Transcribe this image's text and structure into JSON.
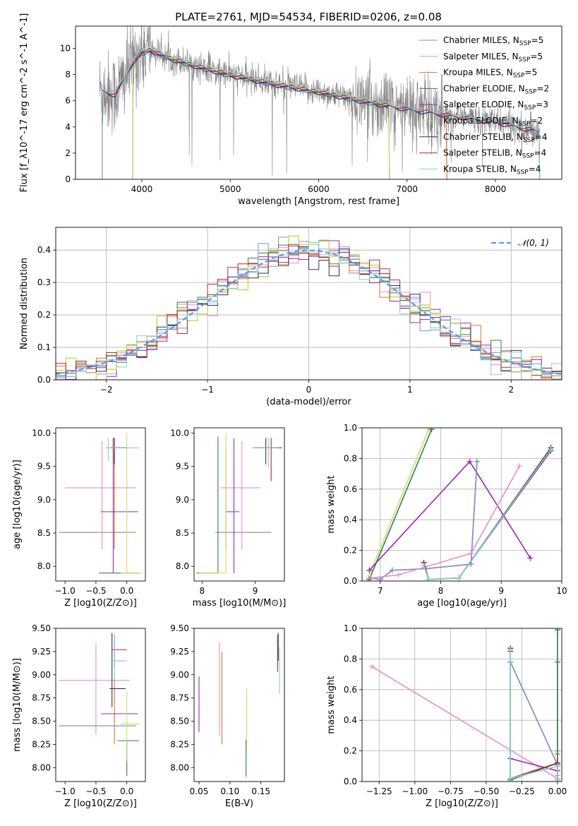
{
  "figure": {
    "title": "PLATE=2761, MJD=54534, FIBERID=0206, z=0.08"
  },
  "colors": {
    "Chabrier MILES": "#7b93d6",
    "Salpeter MILES": "#e88fc6",
    "Kroupa MILES": "#d7792b",
    "Chabrier ELODIE": "#2f8050",
    "Salpeter ELODIE": "#9c27b0",
    "Kroupa ELODIE": "#c8e06a",
    "Chabrier STELIB": "#2d2d6f",
    "Salpeter STELIB": "#b22a2a",
    "Kroupa STELIB": "#7fd2d8",
    "data": "#808080",
    "normal": "#6495ed"
  },
  "chart_data": [
    {
      "id": "spectrum",
      "type": "line",
      "title": "PLATE=2761, MJD=54534, FIBERID=0206, z=0.08",
      "xlabel": "wavelength [Angstrom, rest frame]",
      "ylabel": "Flux [f_λ10^-17 erg cm^-2 s^-1 A^-1]",
      "xlim": [
        3250,
        8750
      ],
      "ylim": [
        0,
        11.7
      ],
      "xticks": [
        4000,
        5000,
        6000,
        7000,
        8000
      ],
      "yticks": [
        0,
        2,
        4,
        6,
        8,
        10
      ],
      "legend_loc": "upper right",
      "continuum_anchors": {
        "x": [
          3550,
          3700,
          3900,
          4000,
          4100,
          4300,
          4600,
          5000,
          5500,
          6000,
          6500,
          7000,
          7500,
          8000,
          8500
        ],
        "y": [
          6.8,
          6.5,
          9.0,
          9.7,
          9.9,
          9.3,
          8.7,
          8.0,
          7.3,
          6.7,
          6.0,
          5.4,
          4.9,
          4.4,
          3.7
        ]
      },
      "series": [
        {
          "name": "Chabrier MILES",
          "nssp": 5,
          "xrange": [
            3550,
            7450
          ]
        },
        {
          "name": "Salpeter MILES",
          "nssp": 5,
          "xrange": [
            3550,
            7450
          ]
        },
        {
          "name": "Kroupa MILES",
          "nssp": 5,
          "xrange": [
            3550,
            7450
          ]
        },
        {
          "name": "Chabrier ELODIE",
          "nssp": 2,
          "xrange": [
            3900,
            6800
          ]
        },
        {
          "name": "Salpeter ELODIE",
          "nssp": 3,
          "xrange": [
            3900,
            6800
          ]
        },
        {
          "name": "Kroupa ELODIE",
          "nssp": 2,
          "xrange": [
            3900,
            6800
          ]
        },
        {
          "name": "Chabrier STELIB",
          "nssp": 4,
          "xrange": [
            3550,
            8500
          ]
        },
        {
          "name": "Salpeter STELIB",
          "nssp": 4,
          "xrange": [
            3550,
            8500
          ]
        },
        {
          "name": "Kroupa STELIB",
          "nssp": 4,
          "xrange": [
            3550,
            8500
          ]
        }
      ]
    },
    {
      "id": "residuals",
      "type": "line",
      "xlabel": "(data-model)/error",
      "ylabel": "Normed distribution",
      "xlim": [
        -2.5,
        2.5
      ],
      "ylim": [
        0,
        0.47
      ],
      "xticks": [
        -2,
        -1,
        0,
        1,
        2
      ],
      "yticks": [
        0.0,
        0.1,
        0.2,
        0.3,
        0.4
      ],
      "bin_width": 0.1,
      "legend": "𝒩(0, 1)",
      "grid": true
    },
    {
      "id": "age_vs_Z",
      "type": "scatter",
      "xlabel": "Z [log10(Z/Z⊙)]",
      "ylabel": "age  [log10(age/yr)]",
      "xlim": [
        -1.15,
        0.3
      ],
      "ylim": [
        7.78,
        10.08
      ],
      "xticks": [
        -1.0,
        -0.5,
        0.0
      ],
      "yticks": [
        8.0,
        8.5,
        9.0,
        9.5,
        10.0
      ],
      "points": [
        {
          "series": "Salpeter MILES",
          "x": -0.4,
          "xerr": [
            0.6,
            0.55
          ],
          "y": 9.18,
          "yerr": [
            0.92,
            0.7
          ]
        },
        {
          "series": "Kroupa MILES",
          "x": -0.2,
          "xerr": [
            0.9,
            0.35
          ],
          "y": 8.51,
          "yerr": [
            0.25,
            1.25
          ]
        },
        {
          "series": "Chabrier MILES",
          "x": -0.45,
          "xerr": [
            0.6,
            0.55
          ],
          "y": 8.51,
          "yerr": [
            0.0,
            0.0
          ]
        },
        {
          "series": "Salpeter ELODIE",
          "x": -0.22,
          "xerr": [
            0.2,
            0.4
          ],
          "y": 8.82,
          "yerr": [
            0.92,
            1.1
          ]
        },
        {
          "series": "Chabrier ELODIE",
          "x": -0.1,
          "xerr": [
            0.35,
            0.3
          ],
          "y": 7.9,
          "yerr": [
            0.0,
            0.0
          ]
        },
        {
          "series": "Kroupa ELODIE",
          "x": 0.0,
          "xerr": [
            0.1,
            0.25
          ],
          "y": 7.9,
          "yerr": [
            0.0,
            2.1
          ]
        },
        {
          "series": "Chabrier STELIB",
          "x": -0.2,
          "xerr": [
            0.05,
            0.2
          ],
          "y": 9.78,
          "yerr": [
            0.25,
            0.15
          ]
        },
        {
          "series": "Salpeter STELIB",
          "x": -0.22,
          "xerr": [
            0.05,
            0.2
          ],
          "y": 9.78,
          "yerr": [
            0.2,
            0.15
          ]
        },
        {
          "series": "Kroupa STELIB",
          "x": -0.3,
          "xerr": [
            0.05,
            0.5
          ],
          "y": 9.78,
          "yerr": [
            0.2,
            0.15
          ]
        }
      ]
    },
    {
      "id": "age_vs_mass",
      "type": "scatter",
      "xlabel": "mass [log10(M/M⊙)]",
      "ylabel": "",
      "xlim": [
        7.85,
        9.55
      ],
      "ylim": [
        7.78,
        10.08
      ],
      "xticks": [
        8,
        9
      ],
      "yticks": [
        8.0,
        8.5,
        9.0,
        9.5,
        10.0
      ],
      "points": [
        {
          "series": "Salpeter MILES",
          "x": 8.75,
          "xerr": [
            0.4,
            0.35
          ],
          "y": 9.18,
          "yerr": [
            0.92,
            0.7
          ]
        },
        {
          "series": "Kroupa MILES",
          "x": 8.45,
          "xerr": [
            0.2,
            0.85
          ],
          "y": 8.51,
          "yerr": [
            0.25,
            1.25
          ]
        },
        {
          "series": "Chabrier MILES",
          "x": 8.45,
          "xerr": [
            0.2,
            0.85
          ],
          "y": 8.51,
          "yerr": [
            0.0,
            0.0
          ]
        },
        {
          "series": "Salpeter ELODIE",
          "x": 8.6,
          "xerr": [
            0.15,
            0.1
          ],
          "y": 8.82,
          "yerr": [
            0.92,
            1.1
          ]
        },
        {
          "series": "Chabrier ELODIE",
          "x": 8.3,
          "xerr": [
            0.4,
            0.0
          ],
          "y": 7.9,
          "yerr": [
            0.0,
            2.05
          ]
        },
        {
          "series": "Kroupa ELODIE",
          "x": 8.45,
          "xerr": [
            0.5,
            0.0
          ],
          "y": 7.9,
          "yerr": [
            0.0,
            2.1
          ]
        },
        {
          "series": "Chabrier STELIB",
          "x": 9.2,
          "xerr": [
            0.25,
            0.3
          ],
          "y": 9.78,
          "yerr": [
            0.25,
            0.15
          ]
        },
        {
          "series": "Salpeter STELIB",
          "x": 9.3,
          "xerr": [
            0.25,
            0.2
          ],
          "y": 9.78,
          "yerr": [
            0.5,
            0.15
          ]
        },
        {
          "series": "Kroupa STELIB",
          "x": 9.25,
          "xerr": [
            0.3,
            0.2
          ],
          "y": 9.78,
          "yerr": [
            0.3,
            0.15
          ]
        }
      ]
    },
    {
      "id": "weight_vs_age",
      "type": "line",
      "xlabel": "age  [log10(age/yr)]",
      "ylabel": "mass weight",
      "xlim": [
        6.7,
        10
      ],
      "ylim": [
        0,
        1
      ],
      "xticks": [
        7,
        8,
        9,
        10
      ],
      "yticks": [
        0.0,
        0.2,
        0.4,
        0.6,
        0.8,
        1.0
      ],
      "grid": true,
      "series": [
        {
          "name": "Kroupa ELODIE",
          "x": [
            6.8,
            7.8
          ],
          "y": [
            0.02,
            0.99
          ]
        },
        {
          "name": "Chabrier ELODIE",
          "x": [
            6.82,
            7.85
          ],
          "y": [
            0.01,
            0.99
          ]
        },
        {
          "name": "Salpeter ELODIE",
          "x": [
            6.82,
            8.48,
            9.48
          ],
          "y": [
            0.07,
            0.78,
            0.15
          ]
        },
        {
          "name": "Kroupa MILES",
          "x": [
            6.85,
            7.0,
            7.2,
            7.75,
            8.5,
            8.6
          ],
          "y": [
            0.02,
            0.01,
            0.07,
            0.08,
            0.11,
            0.78
          ]
        },
        {
          "name": "Chabrier MILES",
          "x": [
            6.85,
            7.0,
            7.2,
            7.75,
            8.5,
            8.6
          ],
          "y": [
            0.02,
            0.01,
            0.07,
            0.08,
            0.11,
            0.78
          ]
        },
        {
          "name": "Salpeter MILES",
          "x": [
            6.85,
            7.3,
            8.5,
            9.3
          ],
          "y": [
            0.02,
            0.04,
            0.18,
            0.75
          ]
        },
        {
          "name": "Chabrier STELIB",
          "x": [
            7.72,
            7.8,
            8.3,
            9.82
          ],
          "y": [
            0.12,
            0.01,
            0.02,
            0.87
          ]
        },
        {
          "name": "Salpeter STELIB",
          "x": [
            7.72,
            7.8,
            8.3,
            9.82
          ],
          "y": [
            0.12,
            0.01,
            0.02,
            0.85
          ]
        },
        {
          "name": "Kroupa STELIB",
          "x": [
            7.72,
            7.8,
            8.3,
            9.82
          ],
          "y": [
            0.1,
            0.01,
            0.02,
            0.86
          ]
        }
      ]
    },
    {
      "id": "mass_vs_Z",
      "type": "scatter",
      "xlabel": "Z [log10(Z/Z⊙)]",
      "ylabel": "mass [log10(M/M⊙)]",
      "xlim": [
        -1.15,
        0.3
      ],
      "ylim": [
        7.85,
        9.5
      ],
      "xticks": [
        -1.0,
        -0.5,
        0.0
      ],
      "yticks": [
        8.0,
        8.25,
        8.5,
        8.75,
        9.0,
        9.25,
        9.5
      ],
      "points": [
        {
          "series": "Salpeter MILES",
          "x": -0.5,
          "xerr": [
            0.6,
            0.55
          ],
          "y": 8.94,
          "yerr": [
            0.58,
            0.4
          ]
        },
        {
          "series": "Kroupa MILES",
          "x": -0.2,
          "xerr": [
            0.9,
            0.35
          ],
          "y": 8.45,
          "yerr": [
            0.2,
            0.55
          ]
        },
        {
          "series": "Chabrier MILES",
          "x": -0.45,
          "xerr": [
            0.6,
            0.55
          ],
          "y": 8.45,
          "yerr": [
            0.0,
            0.0
          ]
        },
        {
          "series": "Salpeter ELODIE",
          "x": -0.22,
          "xerr": [
            0.2,
            0.4
          ],
          "y": 8.58,
          "yerr": [
            0.0,
            0.0
          ]
        },
        {
          "series": "Chabrier ELODIE",
          "x": 0.0,
          "xerr": [
            0.15,
            0.2
          ],
          "y": 8.29,
          "yerr": [
            0.38,
            0.0
          ]
        },
        {
          "series": "Kroupa ELODIE",
          "x": 0.0,
          "xerr": [
            0.1,
            0.2
          ],
          "y": 8.47,
          "yerr": [
            0.4,
            0.35
          ]
        },
        {
          "series": "Chabrier STELIB",
          "x": -0.24,
          "xerr": [
            0.04,
            0.22
          ],
          "y": 8.85,
          "yerr": [
            0.2,
            0.6
          ]
        },
        {
          "series": "Salpeter STELIB",
          "x": -0.2,
          "xerr": [
            0.05,
            0.2
          ],
          "y": 9.27,
          "yerr": [
            0.2,
            0.15
          ]
        },
        {
          "series": "Kroupa STELIB",
          "x": -0.2,
          "xerr": [
            0.05,
            0.2
          ],
          "y": 9.15,
          "yerr": [
            0.2,
            0.3
          ]
        }
      ]
    },
    {
      "id": "mass_vs_ebv",
      "type": "scatter",
      "xlabel": "E(B-V)",
      "ylabel": "",
      "xlim": [
        0.042,
        0.188
      ],
      "ylim": [
        7.85,
        9.5
      ],
      "xticks": [
        0.05,
        0.1,
        0.15
      ],
      "yticks": [
        8.0,
        8.25,
        8.5,
        8.75,
        9.0,
        9.25,
        9.5
      ],
      "points": [
        {
          "series": "Salpeter ELODIE",
          "x": 0.05,
          "y": 8.68,
          "yerr": [
            0.3,
            0.3
          ]
        },
        {
          "series": "Salpeter MILES",
          "x": 0.083,
          "y": 8.85,
          "yerr": [
            0.5,
            0.5
          ]
        },
        {
          "series": "Kroupa MILES",
          "x": 0.087,
          "y": 8.75,
          "yerr": [
            0.5,
            0.5
          ]
        },
        {
          "series": "Chabrier ELODIE",
          "x": 0.126,
          "y": 8.1,
          "yerr": [
            0.2,
            0.2
          ]
        },
        {
          "series": "Kroupa ELODIE",
          "x": 0.127,
          "y": 8.5,
          "yerr": [
            0.35,
            0.35
          ]
        },
        {
          "series": "Salpeter STELIB",
          "x": 0.177,
          "y": 9.23,
          "yerr": [
            0.2,
            0.2
          ]
        },
        {
          "series": "Chabrier STELIB",
          "x": 0.178,
          "y": 9.3,
          "yerr": [
            0.15,
            0.15
          ]
        },
        {
          "series": "Kroupa STELIB",
          "x": 0.18,
          "y": 9.05,
          "yerr": [
            0.25,
            0.25
          ]
        }
      ]
    },
    {
      "id": "weight_vs_Z",
      "type": "line",
      "xlabel": "Z [log10(Z/Z⊙)]",
      "ylabel": "mass weight",
      "xlim": [
        -1.37,
        0.03
      ],
      "ylim": [
        0,
        1
      ],
      "xticks": [
        -1.25,
        -1.0,
        -0.75,
        -0.5,
        -0.25,
        0.0
      ],
      "ytick_labels": [
        "0.0",
        "0.2",
        "0.4",
        "0.6",
        "0.8",
        "1.0"
      ],
      "xtick_labels": [
        "−1.25",
        "−1.00",
        "−0.75",
        "−0.50",
        "−0.25",
        "0.00"
      ],
      "yticks": [
        0.0,
        0.2,
        0.4,
        0.6,
        0.8,
        1.0
      ],
      "grid": true,
      "series": [
        {
          "name": "Salpeter MILES",
          "x": [
            -1.3,
            0.0,
            0.0
          ],
          "y": [
            0.75,
            0.02,
            0.04
          ]
        },
        {
          "name": "Kroupa MILES",
          "x": [
            -0.33,
            -0.33,
            0.0,
            0.0
          ],
          "y": [
            0.02,
            0.78,
            0.11,
            0.18
          ]
        },
        {
          "name": "Chabrier MILES",
          "x": [
            -0.33,
            -0.33,
            0.0,
            0.0
          ],
          "y": [
            0.02,
            0.78,
            0.11,
            0.2
          ]
        },
        {
          "name": "Salpeter ELODIE",
          "x": [
            -0.33,
            0.0,
            0.0
          ],
          "y": [
            0.15,
            0.07,
            0.78
          ]
        },
        {
          "name": "Kroupa ELODIE",
          "x": [
            0.0,
            0.0
          ],
          "y": [
            0.02,
            0.99
          ]
        },
        {
          "name": "Chabrier ELODIE",
          "x": [
            -0.33,
            0.0,
            0.0
          ],
          "y": [
            0.01,
            0.12,
            0.99
          ]
        },
        {
          "name": "Chabrier STELIB",
          "x": [
            -0.33,
            -0.33,
            0.0,
            0.0
          ],
          "y": [
            0.87,
            0.02,
            0.12,
            0.01
          ]
        },
        {
          "name": "Salpeter STELIB",
          "x": [
            -0.33,
            -0.33,
            0.0,
            0.0
          ],
          "y": [
            0.85,
            0.02,
            0.12,
            0.01
          ]
        },
        {
          "name": "Kroupa STELIB",
          "x": [
            -0.33,
            -0.33,
            0.0,
            0.0
          ],
          "y": [
            0.86,
            0.02,
            0.1,
            0.01
          ]
        }
      ]
    }
  ]
}
